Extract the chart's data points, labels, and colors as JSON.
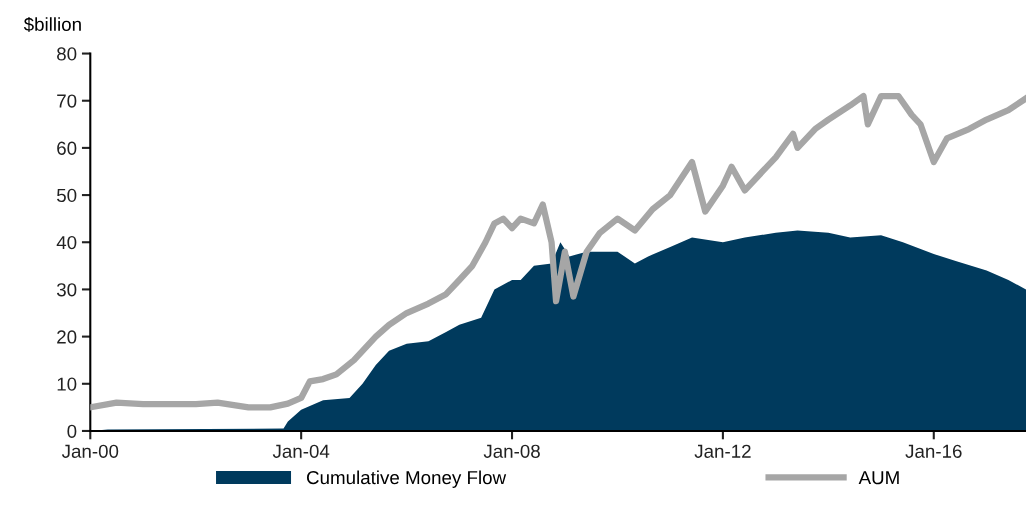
{
  "chart_data": {
    "type": "area",
    "ylabel": "$billion",
    "xlim": [
      "2000-01",
      "2017-10"
    ],
    "xticks": [
      {
        "value": "2000-01",
        "label": "Jan-00"
      },
      {
        "value": "2004-01",
        "label": "Jan-04"
      },
      {
        "value": "2008-01",
        "label": "Jan-08"
      },
      {
        "value": "2012-01",
        "label": "Jan-12"
      },
      {
        "value": "2016-01",
        "label": "Jan-16"
      }
    ],
    "ylim": [
      0,
      80
    ],
    "yticks": [
      0,
      10,
      20,
      30,
      40,
      50,
      60,
      70,
      80
    ],
    "grid": false,
    "legend": "bottom",
    "series": [
      {
        "name": "Cumulative Money Flow",
        "color": "#003a5d",
        "x": [
          "2000-01",
          "2000-05",
          "2003-09",
          "2003-10",
          "2004-01",
          "2004-06",
          "2004-12",
          "2005-03",
          "2005-06",
          "2005-09",
          "2006-01",
          "2006-06",
          "2006-10",
          "2007-01",
          "2007-06",
          "2007-09",
          "2008-01",
          "2008-03",
          "2008-06",
          "2008-10",
          "2008-12",
          "2009-02",
          "2009-06",
          "2010-01",
          "2010-05",
          "2010-08",
          "2011-01",
          "2011-06",
          "2012-01",
          "2012-06",
          "2013-01",
          "2013-06",
          "2014-01",
          "2014-06",
          "2015-01",
          "2015-06",
          "2016-01",
          "2016-06",
          "2017-01",
          "2017-06",
          "2017-10"
        ],
        "values": [
          0,
          0.3,
          0.5,
          2,
          4.5,
          6.5,
          7,
          10,
          14,
          17,
          18.5,
          19,
          21,
          22.5,
          24,
          30,
          32,
          32,
          35,
          35.5,
          40,
          37,
          38,
          38,
          35.5,
          37,
          39,
          41,
          40,
          41,
          42,
          42.5,
          42,
          41,
          41.5,
          40,
          37.5,
          36,
          34,
          32,
          30
        ]
      },
      {
        "name": "AUM",
        "type": "line",
        "color": "#a6a6a6",
        "x": [
          "2000-01",
          "2000-07",
          "2001-01",
          "2002-01",
          "2002-06",
          "2003-01",
          "2003-06",
          "2003-10",
          "2004-01",
          "2004-03",
          "2004-06",
          "2004-09",
          "2005-01",
          "2005-06",
          "2005-09",
          "2006-01",
          "2006-06",
          "2006-10",
          "2007-01",
          "2007-04",
          "2007-07",
          "2007-09",
          "2007-11",
          "2008-01",
          "2008-03",
          "2008-06",
          "2008-08",
          "2008-10",
          "2008-11",
          "2009-01",
          "2009-03",
          "2009-06",
          "2009-09",
          "2010-01",
          "2010-05",
          "2010-09",
          "2011-01",
          "2011-06",
          "2011-09",
          "2012-01",
          "2012-03",
          "2012-06",
          "2012-10",
          "2013-01",
          "2013-05",
          "2013-06",
          "2013-10",
          "2014-01",
          "2014-06",
          "2014-09",
          "2014-10",
          "2015-01",
          "2015-05",
          "2015-08",
          "2015-10",
          "2016-01",
          "2016-04",
          "2016-09",
          "2017-01",
          "2017-06",
          "2017-10"
        ],
        "values": [
          5,
          6,
          5.7,
          5.7,
          6,
          5,
          5,
          5.8,
          7,
          10.5,
          11,
          12,
          15,
          20,
          22.5,
          25,
          27,
          29,
          32,
          35,
          40,
          44,
          45,
          43,
          45,
          44,
          48,
          40,
          27.5,
          38,
          28.5,
          38,
          42,
          45,
          42.5,
          47,
          50,
          57,
          46.5,
          52,
          56,
          51,
          55,
          58,
          63,
          60,
          64,
          66,
          69,
          71,
          65,
          71,
          71,
          67,
          65,
          57,
          62,
          64,
          66,
          68,
          70.5
        ]
      }
    ]
  }
}
